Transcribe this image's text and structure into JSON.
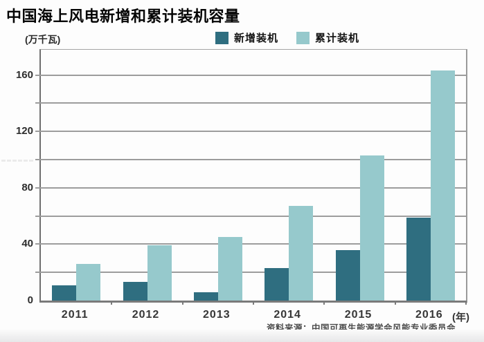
{
  "title": "中国海上风电新增和累计装机容量",
  "unit_label": "(万千瓦)",
  "year_axis_suffix": "(年)",
  "source": "资料来源：中国可再生能源学会风能专业委员会",
  "colors": {
    "new_installed": "#2f6e80",
    "cumulative": "#96c9cc",
    "gridline": "#9c9c9c",
    "axis": "#6f6f6f"
  },
  "legend": {
    "items": [
      {
        "label": "新增装机",
        "color": "#2f6e80"
      },
      {
        "label": "累计装机",
        "color": "#96c9cc"
      }
    ]
  },
  "chart_data": {
    "type": "bar",
    "title": "中国海上风电新增和累计装机容量",
    "categories": [
      "2011",
      "2012",
      "2013",
      "2014",
      "2015",
      "2016"
    ],
    "series": [
      {
        "name": "新增装机",
        "color": "#2f6e80",
        "values": [
          11,
          13,
          6,
          23,
          36,
          59
        ]
      },
      {
        "name": "累计装机",
        "color": "#96c9cc",
        "values": [
          26,
          39,
          45,
          67,
          103,
          163
        ]
      }
    ],
    "ylabel": "(万千瓦)",
    "xlabel": "(年)",
    "ylim": [
      0,
      160
    ],
    "ytick_step": 20,
    "ytick_labeled": [
      0,
      40,
      80,
      120,
      160
    ],
    "grid": true,
    "legend_position": "top-right-inside",
    "source": "资料来源：中国可再生能源学会风能专业委员会"
  }
}
